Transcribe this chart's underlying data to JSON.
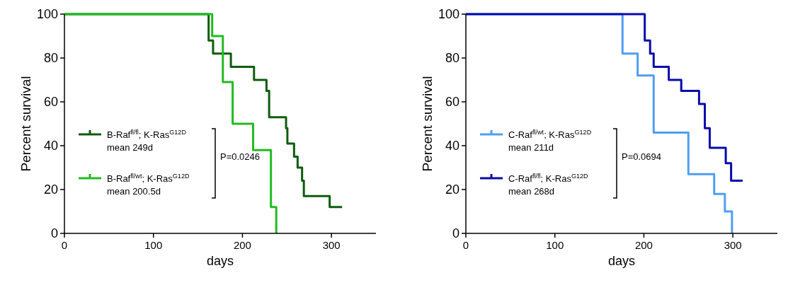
{
  "chart_data": [
    {
      "type": "step",
      "xlabel": "days",
      "ylabel": "Percent survival",
      "xlim": [
        0,
        350
      ],
      "xticks": [
        0,
        100,
        200,
        300
      ],
      "ylim": [
        0,
        100
      ],
      "yticks": [
        0,
        20,
        40,
        60,
        80,
        100
      ],
      "grid": false,
      "legend": "left",
      "annotations": [
        "mean 249d",
        "mean 200.5d",
        "P=0.0246"
      ],
      "series": [
        {
          "name": "B-Raf$^{fl/fl}$; K-Ras$^{G12D}$",
          "color": "#0d5c0d",
          "x": [
            0,
            162,
            167,
            187,
            213,
            227,
            230,
            249,
            250.5,
            258,
            262,
            267,
            269,
            298,
            312
          ],
          "values": [
            100,
            88,
            82,
            76,
            70,
            65,
            53,
            48,
            41,
            35,
            30,
            24,
            17,
            12,
            12
          ]
        },
        {
          "name": "B-Raf$^{fl/wt}$; K-Ras$^{G12D}$",
          "color": "#22bb22",
          "x": [
            0,
            166,
            178,
            189,
            212,
            232,
            238
          ],
          "values": [
            100,
            90,
            69,
            50,
            38,
            12,
            0
          ]
        }
      ]
    },
    {
      "type": "step",
      "xlabel": "days",
      "ylabel": "Percent survival",
      "xlim": [
        0,
        350
      ],
      "xticks": [
        0,
        100,
        200,
        300
      ],
      "ylim": [
        0,
        100
      ],
      "yticks": [
        0,
        20,
        40,
        60,
        80,
        100
      ],
      "grid": false,
      "legend": "left",
      "annotations": [
        "mean 211d",
        "mean 268d",
        "P=0.0694"
      ],
      "series": [
        {
          "name": "C-Raf$^{fl/wt}$; K-Ras$^{G12D}$",
          "color": "#4f9ef0",
          "x": [
            0,
            176,
            193,
            211,
            250,
            279,
            291,
            299
          ],
          "values": [
            100,
            82,
            72,
            46,
            27,
            18,
            10,
            0
          ]
        },
        {
          "name": "C-Raf$^{fl/fl}$; K-Ras$^{G12D}$",
          "color": "#0a0aa8",
          "x": [
            0,
            201,
            207,
            211,
            228,
            242,
            262,
            268.5,
            274,
            292,
            298,
            311
          ],
          "values": [
            100,
            88,
            82,
            76,
            70,
            65,
            59,
            48,
            39,
            32,
            24,
            24
          ]
        }
      ]
    }
  ]
}
